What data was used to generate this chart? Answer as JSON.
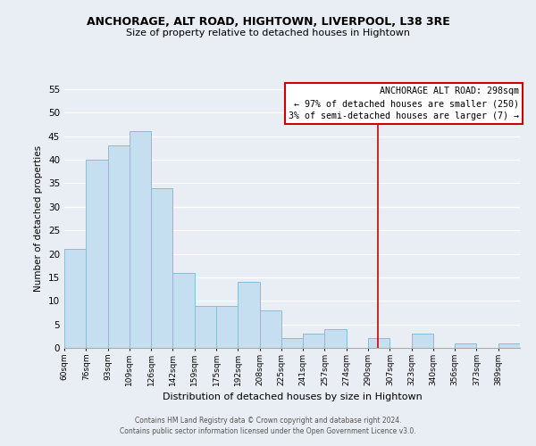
{
  "title": "ANCHORAGE, ALT ROAD, HIGHTOWN, LIVERPOOL, L38 3RE",
  "subtitle": "Size of property relative to detached houses in Hightown",
  "xlabel": "Distribution of detached houses by size in Hightown",
  "ylabel": "Number of detached properties",
  "bar_color": "#c5dff0",
  "bar_edge_color": "#8bbcd4",
  "background_color": "#e8eef4",
  "grid_color": "white",
  "bins": [
    "60sqm",
    "76sqm",
    "93sqm",
    "109sqm",
    "126sqm",
    "142sqm",
    "159sqm",
    "175sqm",
    "192sqm",
    "208sqm",
    "225sqm",
    "241sqm",
    "257sqm",
    "274sqm",
    "290sqm",
    "307sqm",
    "323sqm",
    "340sqm",
    "356sqm",
    "373sqm",
    "389sqm"
  ],
  "values": [
    21,
    40,
    43,
    46,
    34,
    16,
    9,
    9,
    14,
    8,
    2,
    3,
    4,
    0,
    2,
    0,
    3,
    0,
    1,
    0,
    1
  ],
  "ylim": [
    0,
    55
  ],
  "yticks": [
    0,
    5,
    10,
    15,
    20,
    25,
    30,
    35,
    40,
    45,
    50,
    55
  ],
  "vline_x": 14.47,
  "vline_color": "#cc0000",
  "annotation_title": "ANCHORAGE ALT ROAD: 298sqm",
  "annotation_line1": "← 97% of detached houses are smaller (250)",
  "annotation_line2": "3% of semi-detached houses are larger (7) →",
  "annotation_box_color": "white",
  "annotation_box_edge": "#cc0000",
  "footer1": "Contains HM Land Registry data © Crown copyright and database right 2024.",
  "footer2": "Contains public sector information licensed under the Open Government Licence v3.0."
}
